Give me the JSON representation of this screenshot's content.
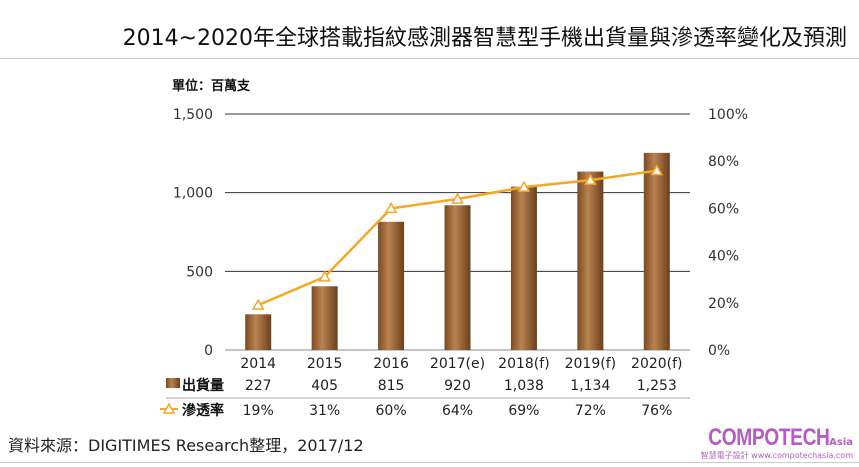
{
  "title": "2014~2020年全球搭載指紋感測器智慧型手機出貨量與滲透率變化及預測",
  "source": "資料來源：DIGITIMES Research整理，2017/12",
  "logo": {
    "brand": "COMPOTECH",
    "suffix": "Asia",
    "tagline": "智慧電子設計 www.compotechasia.com"
  },
  "chart_data": {
    "type": "bar+line",
    "unit_label": "單位：百萬支",
    "categories": [
      "2014",
      "2015",
      "2016",
      "2017(e)",
      "2018(f)",
      "2019(f)",
      "2020(f)"
    ],
    "series": [
      {
        "name": "出貨量",
        "type": "bar",
        "axis": "left",
        "values": [
          227,
          405,
          815,
          920,
          1038,
          1134,
          1253
        ],
        "labels": [
          "227",
          "405",
          "815",
          "920",
          "1,038",
          "1,134",
          "1,253"
        ],
        "color": "#a86f3a"
      },
      {
        "name": "滲透率",
        "type": "line",
        "axis": "right",
        "values": [
          19,
          31,
          60,
          64,
          69,
          72,
          76
        ],
        "labels": [
          "19%",
          "31%",
          "60%",
          "64%",
          "69%",
          "72%",
          "76%"
        ],
        "color": "#f5a623"
      }
    ],
    "left_axis": {
      "ylim": [
        0,
        1500
      ],
      "ticks": [
        "0",
        "500",
        "1,000",
        "1,500"
      ],
      "tick_values": [
        0,
        500,
        1000,
        1500
      ]
    },
    "right_axis": {
      "ylim": [
        0,
        100
      ],
      "ticks": [
        "0%",
        "20%",
        "40%",
        "60%",
        "80%",
        "100%"
      ],
      "tick_values": [
        0,
        20,
        40,
        60,
        80,
        100
      ]
    },
    "grid": true,
    "legend": "data-table-below"
  }
}
